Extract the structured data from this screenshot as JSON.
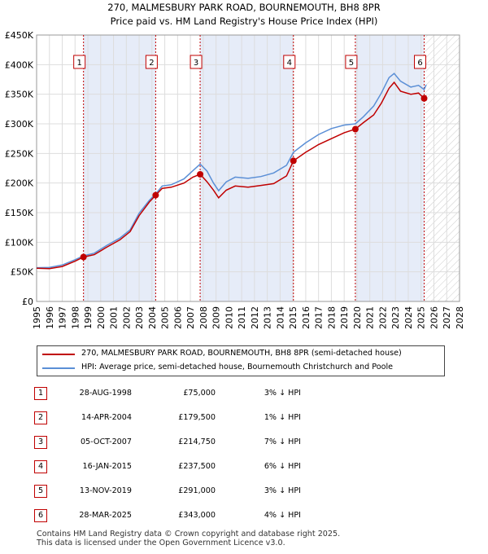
{
  "chart_data": {
    "type": "line",
    "title": "270, MALMESBURY PARK ROAD, BOURNEMOUTH, BH8 8PR",
    "subtitle": "Price paid vs. HM Land Registry's House Price Index (HPI)",
    "xlim": [
      1995,
      2028
    ],
    "ylim": [
      0,
      450000
    ],
    "yticks": [
      0,
      50000,
      100000,
      150000,
      200000,
      250000,
      300000,
      350000,
      400000,
      450000
    ],
    "ytick_labels": [
      "£0",
      "£50K",
      "£100K",
      "£150K",
      "£200K",
      "£250K",
      "£300K",
      "£350K",
      "£400K",
      "£450K"
    ],
    "xticks": [
      1995,
      1996,
      1997,
      1998,
      1999,
      2000,
      2001,
      2002,
      2003,
      2004,
      2005,
      2006,
      2007,
      2008,
      2009,
      2010,
      2011,
      2012,
      2013,
      2014,
      2015,
      2016,
      2017,
      2018,
      2019,
      2020,
      2021,
      2022,
      2023,
      2024,
      2025,
      2026,
      2027,
      2028
    ],
    "future_start": 2025.3,
    "series": [
      {
        "name": "270, MALMESBURY PARK ROAD, BOURNEMOUTH, BH8 8PR (semi-detached house)",
        "color": "#c00000",
        "points": [
          [
            1995.0,
            56000
          ],
          [
            1996.0,
            55500
          ],
          [
            1997.0,
            59000
          ],
          [
            1998.0,
            68000
          ],
          [
            1998.66,
            75000
          ],
          [
            1999.5,
            79000
          ],
          [
            2000.5,
            92000
          ],
          [
            2001.5,
            104000
          ],
          [
            2002.3,
            118000
          ],
          [
            2003.0,
            145000
          ],
          [
            2003.8,
            168000
          ],
          [
            2004.29,
            179500
          ],
          [
            2004.8,
            191000
          ],
          [
            2005.5,
            193000
          ],
          [
            2006.5,
            200000
          ],
          [
            2007.2,
            210000
          ],
          [
            2007.76,
            214750
          ],
          [
            2008.3,
            202000
          ],
          [
            2008.8,
            188000
          ],
          [
            2009.2,
            175000
          ],
          [
            2009.8,
            188000
          ],
          [
            2010.5,
            195000
          ],
          [
            2011.5,
            193000
          ],
          [
            2012.5,
            196000
          ],
          [
            2013.5,
            199000
          ],
          [
            2014.5,
            212000
          ],
          [
            2015.04,
            237500
          ],
          [
            2016.0,
            252000
          ],
          [
            2017.0,
            265000
          ],
          [
            2018.0,
            275000
          ],
          [
            2019.0,
            285000
          ],
          [
            2019.87,
            291000
          ],
          [
            2020.5,
            302000
          ],
          [
            2021.3,
            315000
          ],
          [
            2021.9,
            335000
          ],
          [
            2022.5,
            360000
          ],
          [
            2022.9,
            370000
          ],
          [
            2023.4,
            355000
          ],
          [
            2024.2,
            350000
          ],
          [
            2024.8,
            352000
          ],
          [
            2025.24,
            343000
          ],
          [
            2025.4,
            348000
          ]
        ]
      },
      {
        "name": "HPI: Average price, semi-detached house, Bournemouth Christchurch and Poole",
        "color": "#5b8fd6",
        "points": [
          [
            1995.0,
            57000
          ],
          [
            1996.0,
            57500
          ],
          [
            1997.0,
            61500
          ],
          [
            1998.0,
            70500
          ],
          [
            1998.66,
            77000
          ],
          [
            1999.5,
            81500
          ],
          [
            2000.5,
            95000
          ],
          [
            2001.5,
            107000
          ],
          [
            2002.3,
            121000
          ],
          [
            2003.0,
            149000
          ],
          [
            2003.8,
            171000
          ],
          [
            2004.29,
            181500
          ],
          [
            2004.8,
            195000
          ],
          [
            2005.5,
            197000
          ],
          [
            2006.5,
            207000
          ],
          [
            2007.2,
            221000
          ],
          [
            2007.76,
            232000
          ],
          [
            2008.3,
            220000
          ],
          [
            2008.8,
            200000
          ],
          [
            2009.2,
            187000
          ],
          [
            2009.8,
            202000
          ],
          [
            2010.5,
            210000
          ],
          [
            2011.5,
            208000
          ],
          [
            2012.5,
            211000
          ],
          [
            2013.5,
            217000
          ],
          [
            2014.5,
            230000
          ],
          [
            2015.04,
            252000
          ],
          [
            2016.0,
            268000
          ],
          [
            2017.0,
            282000
          ],
          [
            2018.0,
            292000
          ],
          [
            2019.0,
            298000
          ],
          [
            2019.87,
            300000
          ],
          [
            2020.5,
            312000
          ],
          [
            2021.3,
            330000
          ],
          [
            2021.9,
            352000
          ],
          [
            2022.5,
            378000
          ],
          [
            2022.9,
            385000
          ],
          [
            2023.4,
            372000
          ],
          [
            2024.2,
            362000
          ],
          [
            2024.8,
            365000
          ],
          [
            2025.24,
            358000
          ],
          [
            2025.4,
            366000
          ]
        ]
      }
    ],
    "sales": [
      {
        "label": "1",
        "x": 1998.66,
        "price": 75000
      },
      {
        "label": "2",
        "x": 2004.29,
        "price": 179500
      },
      {
        "label": "3",
        "x": 2007.76,
        "price": 214750
      },
      {
        "label": "4",
        "x": 2015.04,
        "price": 237500
      },
      {
        "label": "5",
        "x": 2019.87,
        "price": 291000
      },
      {
        "label": "6",
        "x": 2025.24,
        "price": 343000
      }
    ],
    "legend_position": "below"
  },
  "legend": {
    "items": [
      {
        "label": "270, MALMESBURY PARK ROAD, BOURNEMOUTH, BH8 8PR (semi-detached house)",
        "color": "#c00000"
      },
      {
        "label": "HPI: Average price, semi-detached house, Bournemouth Christchurch and Poole",
        "color": "#5b8fd6"
      }
    ]
  },
  "sales_table": [
    {
      "num": "1",
      "date": "28-AUG-1998",
      "price": "£75,000",
      "hpi": "3% ↓ HPI"
    },
    {
      "num": "2",
      "date": "14-APR-2004",
      "price": "£179,500",
      "hpi": "1% ↓ HPI"
    },
    {
      "num": "3",
      "date": "05-OCT-2007",
      "price": "£214,750",
      "hpi": "7% ↓ HPI"
    },
    {
      "num": "4",
      "date": "16-JAN-2015",
      "price": "£237,500",
      "hpi": "6% ↓ HPI"
    },
    {
      "num": "5",
      "date": "13-NOV-2019",
      "price": "£291,000",
      "hpi": "3% ↓ HPI"
    },
    {
      "num": "6",
      "date": "28-MAR-2025",
      "price": "£343,000",
      "hpi": "4% ↓ HPI"
    }
  ],
  "footer": {
    "line1": "Contains HM Land Registry data © Crown copyright and database right 2025.",
    "line2": "This data is licensed under the Open Government Licence v3.0."
  }
}
